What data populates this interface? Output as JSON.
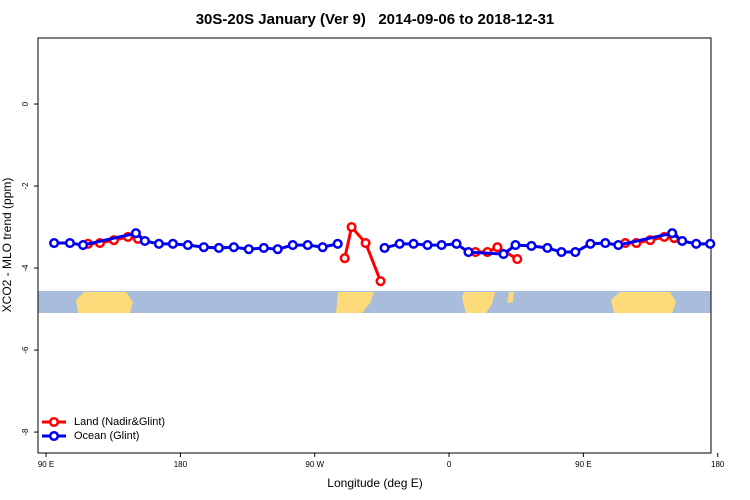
{
  "chart_data": {
    "type": "line",
    "title": "30S-20S January (Ver 9)   2014-09-06 to 2018-12-31",
    "x_label": "Longitude (deg E)",
    "y_label": "XCO2 - MLO trend (ppm)",
    "xlim": [
      84.6,
      535.5
    ],
    "ylim": [
      -8.51,
      1.61
    ],
    "xticks": [
      {
        "value": 90,
        "label": "90 E"
      },
      180,
      {
        "value": 270,
        "label": "90 W"
      },
      {
        "value": 360,
        "label": "0"
      },
      {
        "value": 450,
        "label": "90 E"
      },
      {
        "value": 540,
        "label": "180"
      }
    ],
    "yticks": [
      0,
      -2,
      -4,
      -6,
      -8
    ],
    "legend": "bottom-left",
    "series": [
      {
        "name": "Land (Nadir&Glint)",
        "color": "#ff0000",
        "x": [
          118.1,
          126.1,
          135.5,
          144.9,
          151.6,
          null,
          290.1,
          294.7,
          304.1,
          314.1,
          null,
          377.7,
          385.7,
          392.4,
          405.7,
          null,
          478.1,
          485.5,
          494.8,
          504.2,
          510.9
        ],
        "values": [
          -3.41,
          -3.39,
          -3.32,
          -3.24,
          -3.29,
          null,
          -3.76,
          -3.0,
          -3.39,
          -4.32,
          null,
          -3.61,
          -3.61,
          -3.49,
          -3.78,
          null,
          -3.39,
          -3.39,
          -3.32,
          -3.24,
          -3.27
        ]
      },
      {
        "name": "Ocean (Glint)",
        "color": "#0000ee",
        "x": [
          95.4,
          106,
          114.8,
          150.2,
          156.2,
          165.6,
          175,
          185,
          195.7,
          205.8,
          215.8,
          225.8,
          235.9,
          245.2,
          255.3,
          265.3,
          275.3,
          285.4,
          null,
          316.8,
          326.9,
          336.2,
          345.6,
          355,
          365,
          373,
          396.5,
          404.5,
          415.2,
          425.9,
          435.3,
          444.6,
          454.7,
          464.7,
          473.4,
          509.5,
          516.2,
          525.6,
          535
        ],
        "values": [
          -3.39,
          -3.39,
          -3.44,
          -3.15,
          -3.34,
          -3.41,
          -3.41,
          -3.44,
          -3.49,
          -3.51,
          -3.49,
          -3.54,
          -3.51,
          -3.54,
          -3.44,
          -3.44,
          -3.49,
          -3.41,
          null,
          -3.51,
          -3.41,
          -3.41,
          -3.44,
          -3.44,
          -3.41,
          -3.61,
          -3.66,
          -3.44,
          -3.46,
          -3.51,
          -3.61,
          -3.61,
          -3.41,
          -3.39,
          -3.44,
          -3.15,
          -3.34,
          -3.41,
          -3.41
        ]
      }
    ]
  }
}
